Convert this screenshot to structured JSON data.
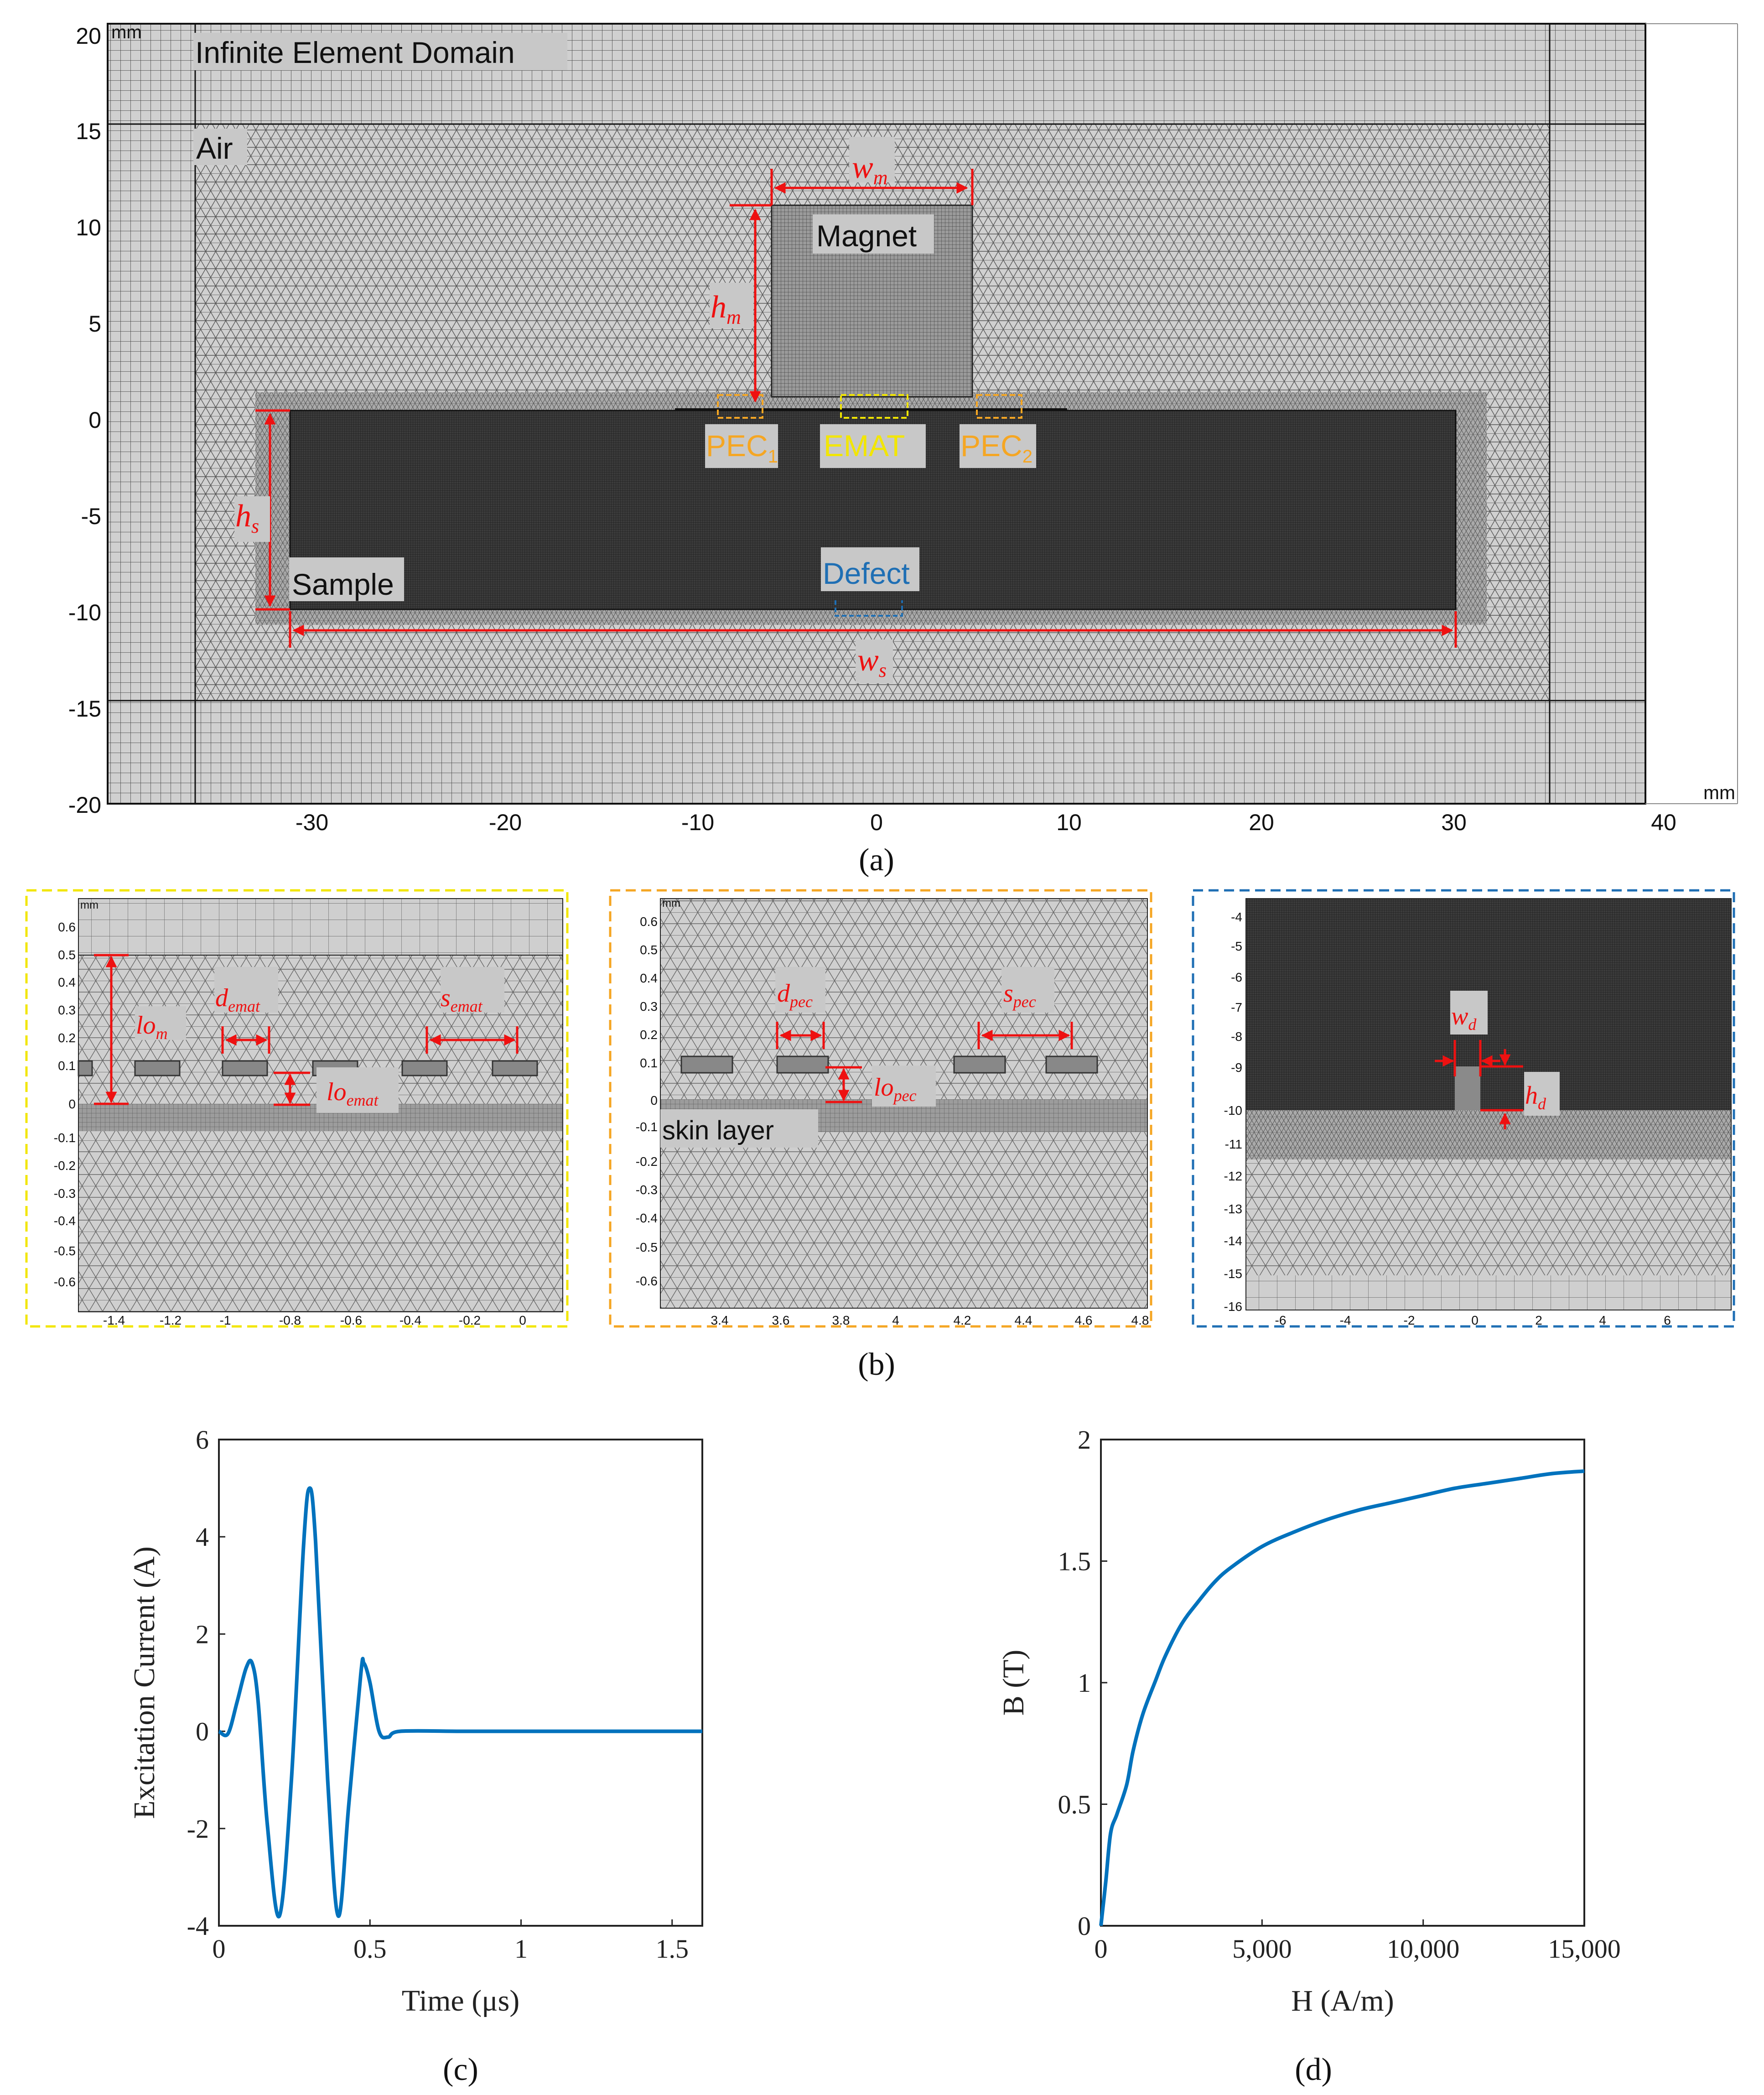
{
  "panel_a": {
    "unit_top_left": "mm",
    "unit_bottom_right": "mm",
    "y_ticks": [
      "20",
      "15",
      "10",
      "5",
      "0",
      "-5",
      "-10",
      "-15",
      "-20"
    ],
    "x_ticks": [
      "-30",
      "-20",
      "-10",
      "0",
      "10",
      "20",
      "30",
      "40"
    ],
    "labels": {
      "infinite_domain": "Infinite Element Domain",
      "air": "Air",
      "magnet": "Magnet",
      "sample": "Sample",
      "defect": "Defect",
      "emat": "EMAT",
      "pec": "PEC",
      "pec1_sub": "1",
      "pec2_sub": "2"
    },
    "dims": {
      "w": "w",
      "h": "h",
      "m": "m",
      "s": "s"
    },
    "caption": "(a)"
  },
  "panel_b": {
    "caption": "(b)",
    "inset1": {
      "unit": "mm",
      "y_ticks": [
        "0.6",
        "0.5",
        "0.4",
        "0.3",
        "0.2",
        "0.1",
        "0",
        "-0.1",
        "-0.2",
        "-0.3",
        "-0.4",
        "-0.5",
        "-0.6"
      ],
      "x_ticks": [
        "-1.4",
        "-1.2",
        "-1",
        "-0.8",
        "-0.6",
        "-0.4",
        "-0.2",
        "0"
      ],
      "dims": {
        "lo": "lo",
        "lo_sub": "m",
        "d": "d",
        "d_sub": "emat",
        "s": "s",
        "s_sub": "emat",
        "lo2": "lo",
        "lo2_sub": "emat"
      }
    },
    "inset2": {
      "unit": "mm",
      "y_ticks": [
        "0.6",
        "0.5",
        "0.4",
        "0.3",
        "0.2",
        "0.1",
        "0",
        "-0.1",
        "-0.2",
        "-0.3",
        "-0.4",
        "-0.5",
        "-0.6"
      ],
      "x_ticks": [
        "3.4",
        "3.6",
        "3.8",
        "4",
        "4.2",
        "4.4",
        "4.6",
        "4.8"
      ],
      "skin": "skin  layer",
      "dims": {
        "d": "d",
        "d_sub": "pec",
        "s": "s",
        "s_sub": "pec",
        "lo": "lo",
        "lo_sub": "pec"
      }
    },
    "inset3": {
      "y_ticks": [
        "-4",
        "-5",
        "-6",
        "-7",
        "-8",
        "-9",
        "-10",
        "-11",
        "-12",
        "-13",
        "-14",
        "-15",
        "-16"
      ],
      "x_ticks": [
        "-6",
        "-4",
        "-2",
        "0",
        "2",
        "4",
        "6"
      ],
      "dims": {
        "w": "w",
        "w_sub": "d",
        "h": "h",
        "h_sub": "d"
      }
    }
  },
  "colors": {
    "yellow": "#f2e600",
    "orange": "#f5a623",
    "blue": "#1f6fb4",
    "red": "#ee1111",
    "line": "#0072bd"
  },
  "chart_data": [
    {
      "type": "line",
      "caption": "(c)",
      "xlabel": "Time (μs)",
      "ylabel": "Excitation Current (A)",
      "xlim": [
        0,
        1.6
      ],
      "ylim": [
        -4,
        6
      ],
      "xticks": [
        "0",
        "0.5",
        "1",
        "1.5"
      ],
      "yticks": [
        "6",
        "4",
        "2",
        "0",
        "-2",
        "-4"
      ],
      "x": [
        0,
        0.03,
        0.06,
        0.09,
        0.11,
        0.13,
        0.16,
        0.2,
        0.24,
        0.28,
        0.3,
        0.32,
        0.36,
        0.395,
        0.43,
        0.47,
        0.48,
        0.5,
        0.53,
        0.56,
        0.6,
        0.8,
        1.0,
        1.2,
        1.4,
        1.6
      ],
      "values": [
        0,
        -0.05,
        0.6,
        1.3,
        1.4,
        0.6,
        -1.9,
        -3.8,
        -1.0,
        3.8,
        5.0,
        3.9,
        -1.0,
        -3.8,
        -1.5,
        1.2,
        1.4,
        1.0,
        0.0,
        -0.12,
        0,
        0,
        0,
        0,
        0,
        0
      ]
    },
    {
      "type": "line",
      "caption": "(d)",
      "xlabel": "H (A/m)",
      "ylabel": "B (T)",
      "xlim": [
        0,
        15000
      ],
      "ylim": [
        0,
        2
      ],
      "xticks": [
        "0",
        "5,000",
        "10,000",
        "15,000"
      ],
      "yticks": [
        "2",
        "1.5",
        "1",
        "0.5",
        "0"
      ],
      "x": [
        0,
        150,
        300,
        500,
        800,
        1000,
        1300,
        1700,
        2000,
        2500,
        3000,
        3500,
        4000,
        5000,
        6000,
        7000,
        8000,
        9000,
        10000,
        11000,
        12000,
        13000,
        14000,
        15000
      ],
      "values": [
        0,
        0.18,
        0.38,
        0.46,
        0.58,
        0.72,
        0.87,
        1.01,
        1.11,
        1.24,
        1.33,
        1.41,
        1.47,
        1.56,
        1.62,
        1.67,
        1.71,
        1.74,
        1.77,
        1.8,
        1.82,
        1.84,
        1.86,
        1.87
      ]
    }
  ]
}
